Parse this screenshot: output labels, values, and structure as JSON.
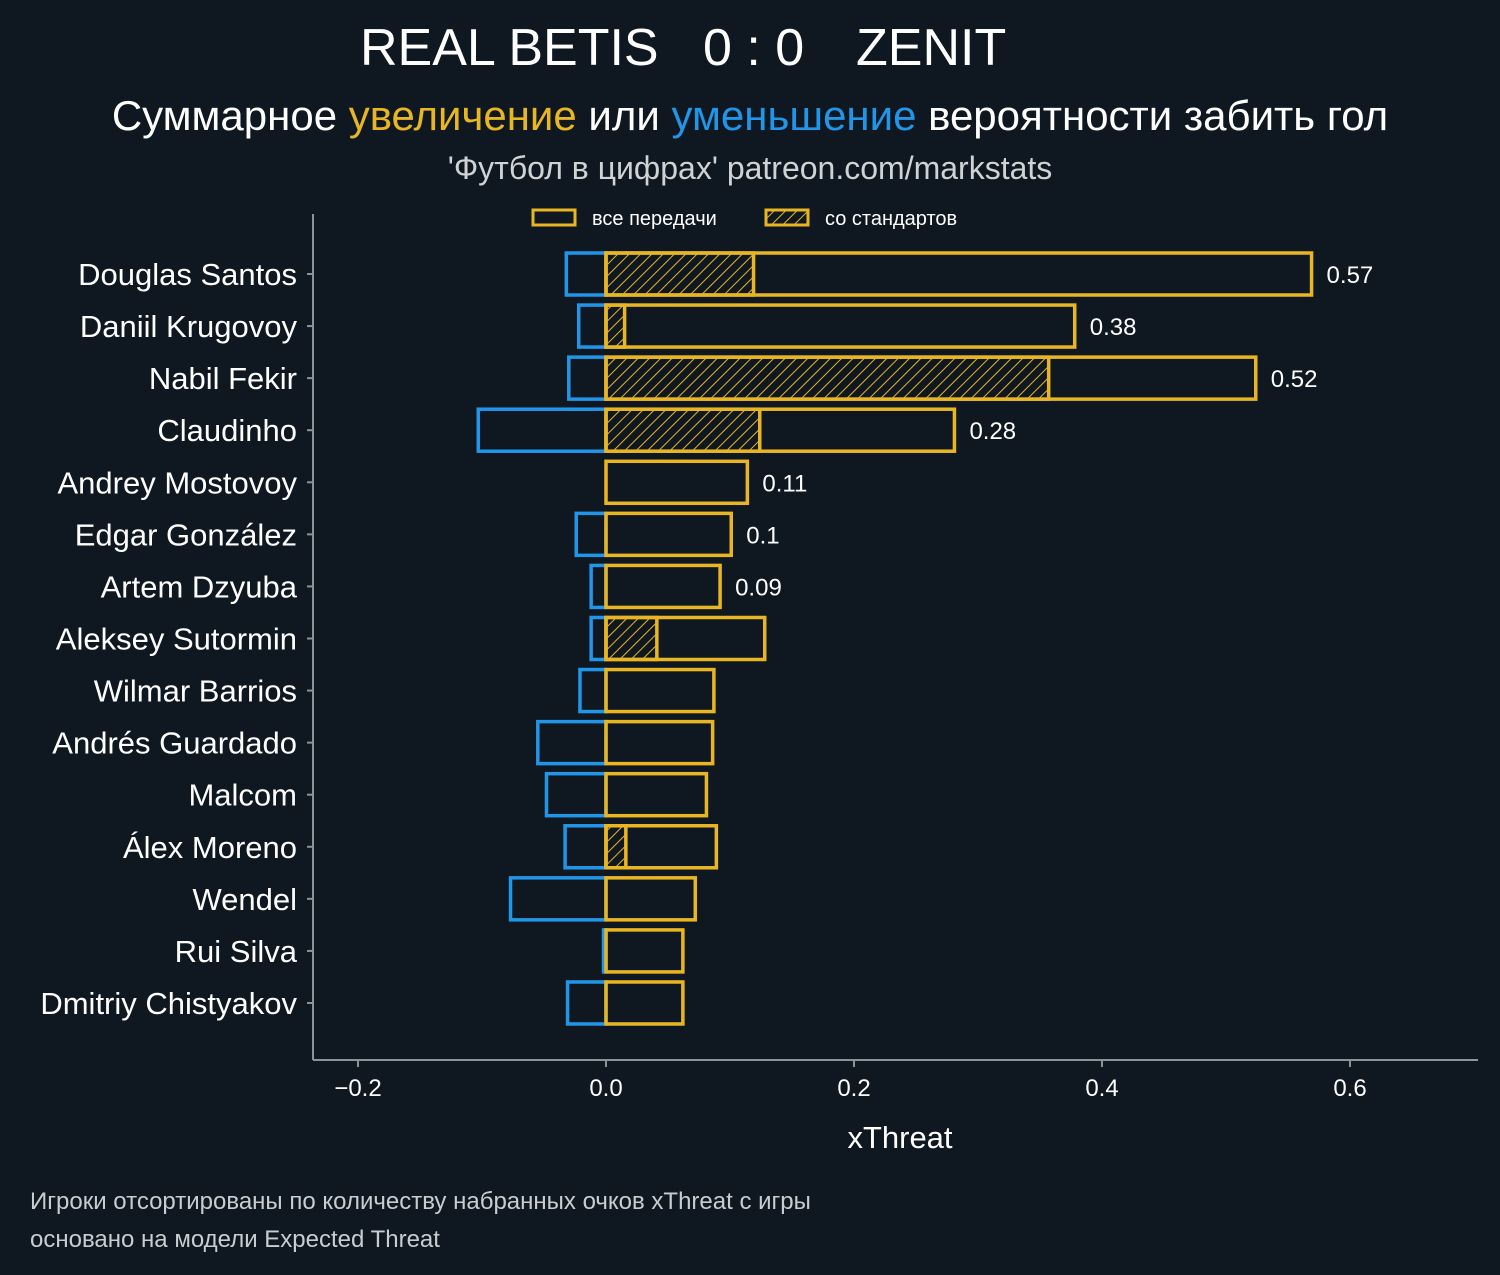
{
  "header": {
    "home_team": "REAL BETIS",
    "score": "0 : 0",
    "away_team": "ZENIT",
    "subtitle_parts": [
      "Суммарное ",
      "увеличение",
      " или ",
      "уменьшение",
      " вероятности забить гол"
    ],
    "credit": "'Футбол в цифрах' patreon.com/markstats"
  },
  "footnotes": [
    "Игроки отсортированы по количеству набранных очков xThreat с игры",
    "основано на модели Expected Threat"
  ],
  "colors": {
    "background": "#0f1820",
    "positive": "#e8b623",
    "negative": "#2196e8",
    "axis": "#8a9499",
    "text": "#ffffff"
  },
  "chart_data": {
    "type": "bar",
    "orientation": "horizontal",
    "xlabel": "xThreat",
    "xlim": [
      -0.2,
      0.7
    ],
    "xticks": [
      -0.2,
      0.0,
      0.2,
      0.4,
      0.6
    ],
    "xtick_labels": [
      "−0.2",
      "0.0",
      "0.2",
      "0.4",
      "0.6"
    ],
    "legend_position": "top-center",
    "legend": [
      {
        "label": "все передачи",
        "style": "outline"
      },
      {
        "label": "со стандартов",
        "style": "hatched"
      }
    ],
    "categories": [
      "Douglas Santos",
      "Daniil Krugovoy",
      "Nabil Fekir",
      "Claudinho",
      "Andrey Mostovoy",
      "Edgar González",
      "Artem Dzyuba",
      "Aleksey Sutormin",
      "Wilmar Barrios",
      "Andrés Guardado",
      "Malcom",
      "Álex Moreno",
      "Wendel",
      "Rui Silva",
      "Dmitriy Chistyakov"
    ],
    "series": [
      {
        "name": "все передачи",
        "values": [
          0.569,
          0.378,
          0.524,
          0.281,
          0.114,
          0.101,
          0.092,
          0.128,
          0.087,
          0.086,
          0.081,
          0.089,
          0.072,
          0.062,
          0.062
        ]
      },
      {
        "name": "со стандартов",
        "values": [
          0.119,
          0.015,
          0.357,
          0.124,
          0,
          0,
          0,
          0.041,
          0,
          0,
          0,
          0.016,
          0,
          0,
          0
        ]
      },
      {
        "name": "negative",
        "values": [
          -0.032,
          -0.022,
          -0.03,
          -0.103,
          0,
          -0.024,
          -0.012,
          -0.012,
          -0.021,
          -0.055,
          -0.048,
          -0.033,
          -0.077,
          -0.002,
          -0.031
        ]
      }
    ],
    "value_labels": [
      "0.57",
      "0.38",
      "0.52",
      "0.28",
      "0.11",
      "0.1",
      "0.09",
      "",
      "",
      "",
      "",
      "",
      "",
      "",
      ""
    ]
  }
}
